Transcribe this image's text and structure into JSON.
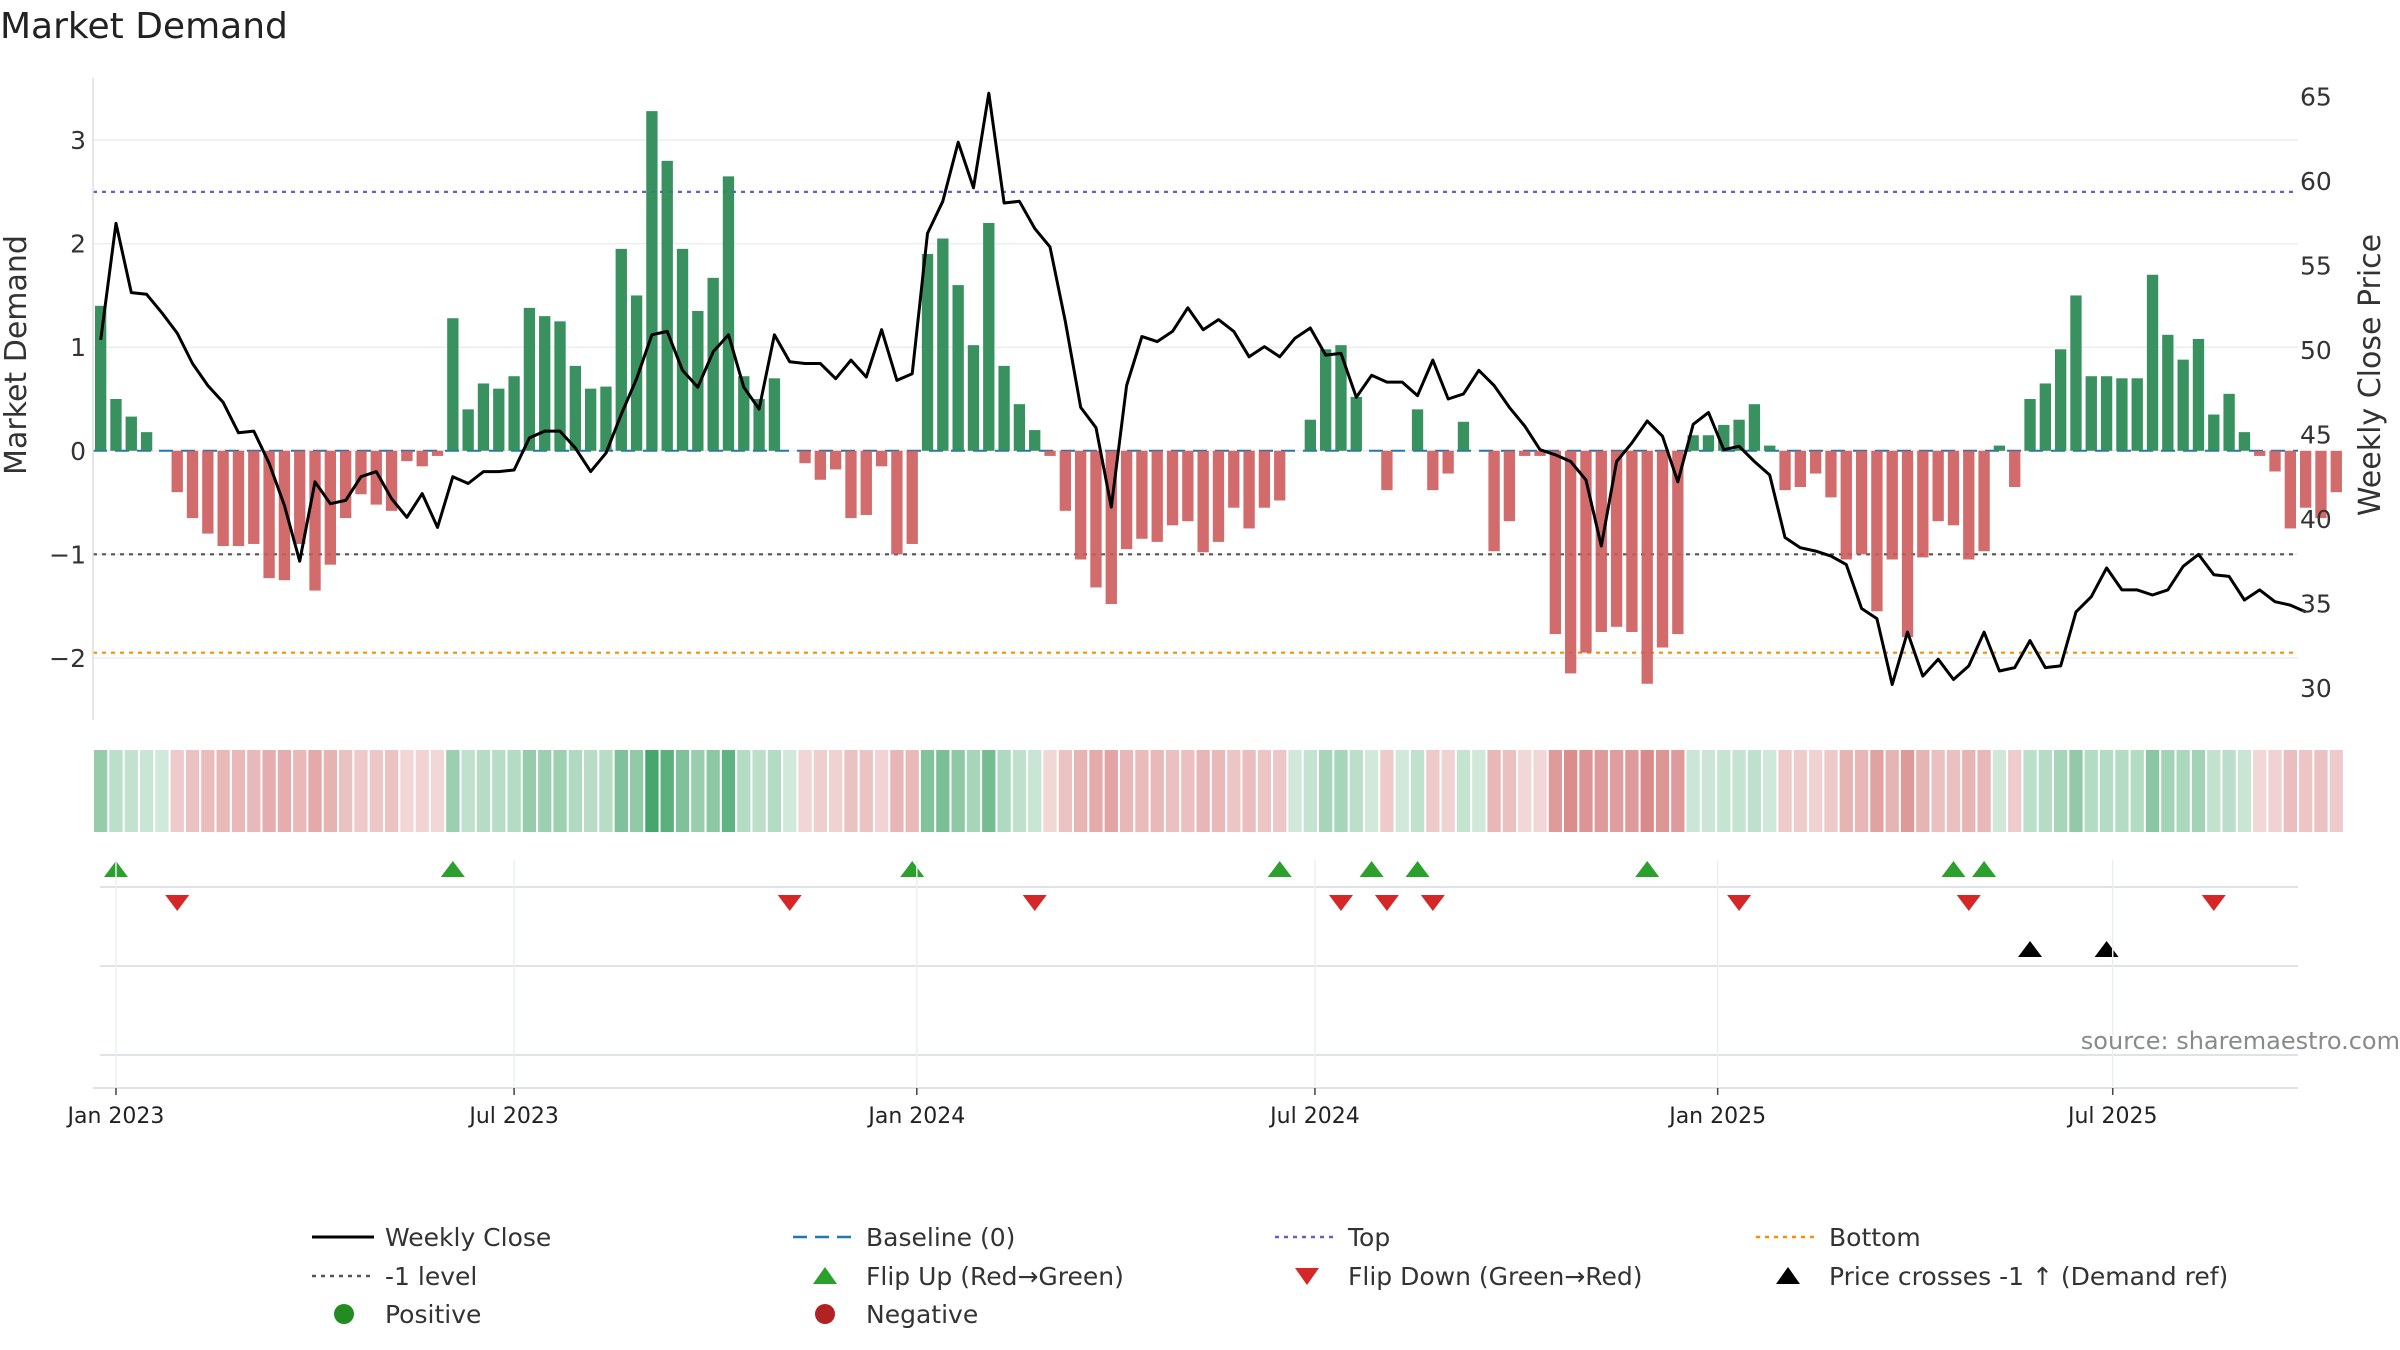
{
  "chart_data": {
    "type": "bar+line",
    "title": "Market Demand",
    "ylabel_left": "Market Demand",
    "ylabel_right": "Weekly Close Price",
    "ylim_left": [
      -2.6,
      3.6
    ],
    "ylim_right": [
      28.1,
      66.1
    ],
    "yticks_left": [
      3,
      2,
      1,
      0,
      -1,
      -2
    ],
    "ytick_labels_left": [
      "3",
      "2",
      "1",
      "0",
      "−1",
      "−2"
    ],
    "yticks_right": [
      65,
      60,
      55,
      50,
      45,
      40,
      35,
      30
    ],
    "ytick_labels_right": [
      "65",
      "60",
      "55",
      "50",
      "45",
      "40",
      "35",
      "30"
    ],
    "ref_levels": {
      "top": 2.5,
      "minus_one": -1,
      "bottom": -1.95,
      "baseline": 0
    },
    "weeks": 144,
    "x_months": [
      {
        "label": "Jan 2023",
        "week": 1
      },
      {
        "label": "Jul 2023",
        "week": 27
      },
      {
        "label": "Jan 2024",
        "week": 53.3
      },
      {
        "label": "Jul 2024",
        "week": 79.3
      },
      {
        "label": "Jan 2025",
        "week": 105.6
      },
      {
        "label": "Jul 2025",
        "week": 131.4
      }
    ],
    "demand": [
      1.4,
      0.5,
      0.33,
      0.18,
      0,
      -0.4,
      -0.65,
      -0.8,
      -0.92,
      -0.92,
      -0.9,
      -1.23,
      -1.25,
      -0.9,
      -1.35,
      -1.1,
      -0.65,
      -0.42,
      -0.52,
      -0.58,
      -0.1,
      -0.15,
      -0.05,
      1.28,
      0.4,
      0.65,
      0.6,
      0.72,
      1.38,
      1.3,
      1.25,
      0.82,
      0.6,
      0.62,
      1.95,
      1.5,
      3.28,
      2.8,
      1.95,
      1.35,
      1.67,
      2.65,
      0.72,
      0.5,
      0.7,
      0,
      -0.12,
      -0.28,
      -0.18,
      -0.65,
      -0.62,
      -0.15,
      -1.0,
      -0.9,
      1.9,
      2.05,
      1.6,
      1.02,
      2.2,
      0.82,
      0.45,
      0.2,
      -0.05,
      -0.58,
      -1.05,
      -1.32,
      -1.48,
      -0.95,
      -0.85,
      -0.88,
      -0.72,
      -0.68,
      -0.98,
      -0.88,
      -0.55,
      -0.75,
      -0.55,
      -0.48,
      0,
      0.3,
      0.98,
      1.02,
      0.52,
      0,
      -0.38,
      0,
      0.4,
      -0.38,
      -0.22,
      0.28,
      0,
      -0.97,
      -0.68,
      -0.05,
      -0.05,
      -1.77,
      -2.15,
      -1.95,
      -1.75,
      -1.7,
      -1.75,
      -2.25,
      -1.9,
      -1.77,
      0.15,
      0.15,
      0.25,
      0.3,
      0.45,
      0.05,
      -0.38,
      -0.35,
      -0.22,
      -0.45,
      -1.05,
      -1.0,
      -1.55,
      -1.05,
      -1.8,
      -1.03,
      -0.68,
      -0.72,
      -1.05,
      -0.97,
      0.05,
      -0.35,
      0.5,
      0.65,
      0.98,
      1.5,
      0.72,
      0.72,
      0.7,
      0.7,
      1.7,
      1.12,
      0.88,
      1.08,
      0.35,
      0.55,
      0.18,
      -0.05,
      -0.2,
      -0.75,
      -0.55,
      -0.65,
      -0.4
    ],
    "weekly_close": [
      50.6,
      57.5,
      53.4,
      53.3,
      52.2,
      51,
      49.2,
      47.9,
      46.9,
      45.1,
      45.2,
      43.3,
      40.8,
      37.5,
      42.2,
      40.9,
      41.1,
      42.5,
      42.8,
      41.2,
      40.1,
      41.5,
      39.5,
      42.5,
      42.1,
      42.8,
      42.8,
      42.9,
      44.8,
      45.2,
      45.2,
      44.2,
      42.8,
      43.9,
      46.2,
      48.3,
      50.9,
      51.1,
      48.8,
      47.8,
      49.9,
      50.9,
      47.8,
      46.5,
      50.9,
      49.3,
      49.2,
      49.2,
      48.3,
      49.4,
      48.4,
      51.2,
      48.2,
      48.6,
      56.9,
      58.8,
      62.3,
      59.6,
      65.2,
      58.7,
      58.8,
      57.2,
      56.1,
      51.7,
      46.6,
      45.4,
      40.7,
      47.9,
      50.8,
      50.5,
      51.1,
      52.5,
      51.2,
      51.8,
      51.1,
      49.6,
      50.2,
      49.6,
      50.7,
      51.3,
      49.7,
      49.8,
      47.2,
      48.5,
      48.1,
      48.1,
      47.3,
      49.4,
      47.1,
      47.4,
      48.8,
      47.9,
      46.6,
      45.5,
      44.1,
      43.8,
      43.4,
      42.3,
      38.4,
      43.4,
      44.5,
      45.8,
      44.9,
      42.2,
      45.6,
      46.3,
      44.1,
      44.3,
      43.4,
      42.6,
      38.9,
      38.3,
      38.1,
      37.8,
      37.3,
      34.7,
      34.1,
      30.2,
      33.3,
      30.7,
      31.7,
      30.5,
      31.3,
      33.3,
      31,
      31.2,
      32.8,
      31.2,
      31.3,
      34.5,
      35.4,
      37.1,
      35.8,
      35.8,
      35.5,
      35.8,
      37.2,
      37.9,
      36.7,
      36.6,
      35.2,
      35.8,
      35.1,
      34.9,
      34.5
    ],
    "flip_up_weeks": [
      1,
      23,
      53,
      77,
      83,
      86,
      101,
      121,
      123
    ],
    "flip_down_weeks": [
      5,
      45,
      61,
      81,
      84,
      87,
      107,
      122,
      138
    ],
    "price_cross_weeks": [
      126,
      131
    ],
    "colors": {
      "positive_bar": "#2e8b57",
      "negative_bar": "#cd5c5c",
      "close_line": "#000000",
      "baseline": "#1f77b4",
      "top": "#6a5acd",
      "minus_one": "#555555",
      "bottom": "#ff8c00",
      "flip_up": "#2ca02c",
      "flip_down": "#d62728",
      "cross": "#000000",
      "positive_marker": "#228b22",
      "negative_marker": "#b22222"
    },
    "legend": [
      {
        "label": "Weekly Close",
        "kind": "line",
        "color": "#000000"
      },
      {
        "label": "Baseline (0)",
        "kind": "dash",
        "color": "#1f77b4"
      },
      {
        "label": "Top",
        "kind": "dot",
        "color": "#6a5acd"
      },
      {
        "label": "Bottom",
        "kind": "dot",
        "color": "#ff8c00"
      },
      {
        "label": "-1 level",
        "kind": "dot",
        "color": "#555555"
      },
      {
        "label": "Flip Up (Red→Green)",
        "kind": "tri-up",
        "color": "#2ca02c"
      },
      {
        "label": "Flip Down (Green→Red)",
        "kind": "tri-down",
        "color": "#d62728"
      },
      {
        "label": "Price crosses -1 ↑ (Demand ref)",
        "kind": "tri-up",
        "color": "#000000"
      },
      {
        "label": "Positive",
        "kind": "circle",
        "color": "#228b22"
      },
      {
        "label": "Negative",
        "kind": "circle",
        "color": "#b22222"
      }
    ],
    "source": "source: sharemaestro.com"
  }
}
